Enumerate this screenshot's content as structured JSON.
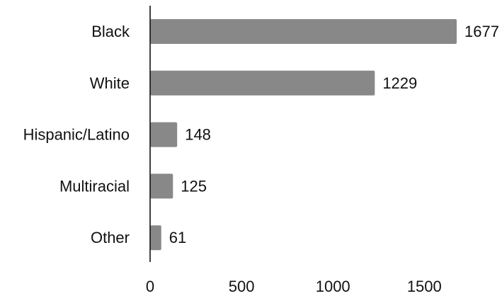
{
  "chart_data": {
    "type": "bar",
    "orientation": "horizontal",
    "title": "",
    "xlabel": "",
    "ylabel": "",
    "categories": [
      "Black",
      "White",
      "Hispanic/Latino",
      "Multiracial",
      "Other"
    ],
    "values": [
      1677,
      1229,
      148,
      125,
      61
    ],
    "value_labels": [
      "1677",
      "1229",
      "148",
      "125",
      "61"
    ],
    "xlim": [
      0,
      1677
    ],
    "xticks": [
      0,
      500,
      1000,
      1500
    ],
    "xtick_labels": [
      "0",
      "500",
      "1000",
      "1500"
    ],
    "grid": false,
    "legend": "none",
    "bar_color": "#888888",
    "axis_color": "#111111"
  }
}
